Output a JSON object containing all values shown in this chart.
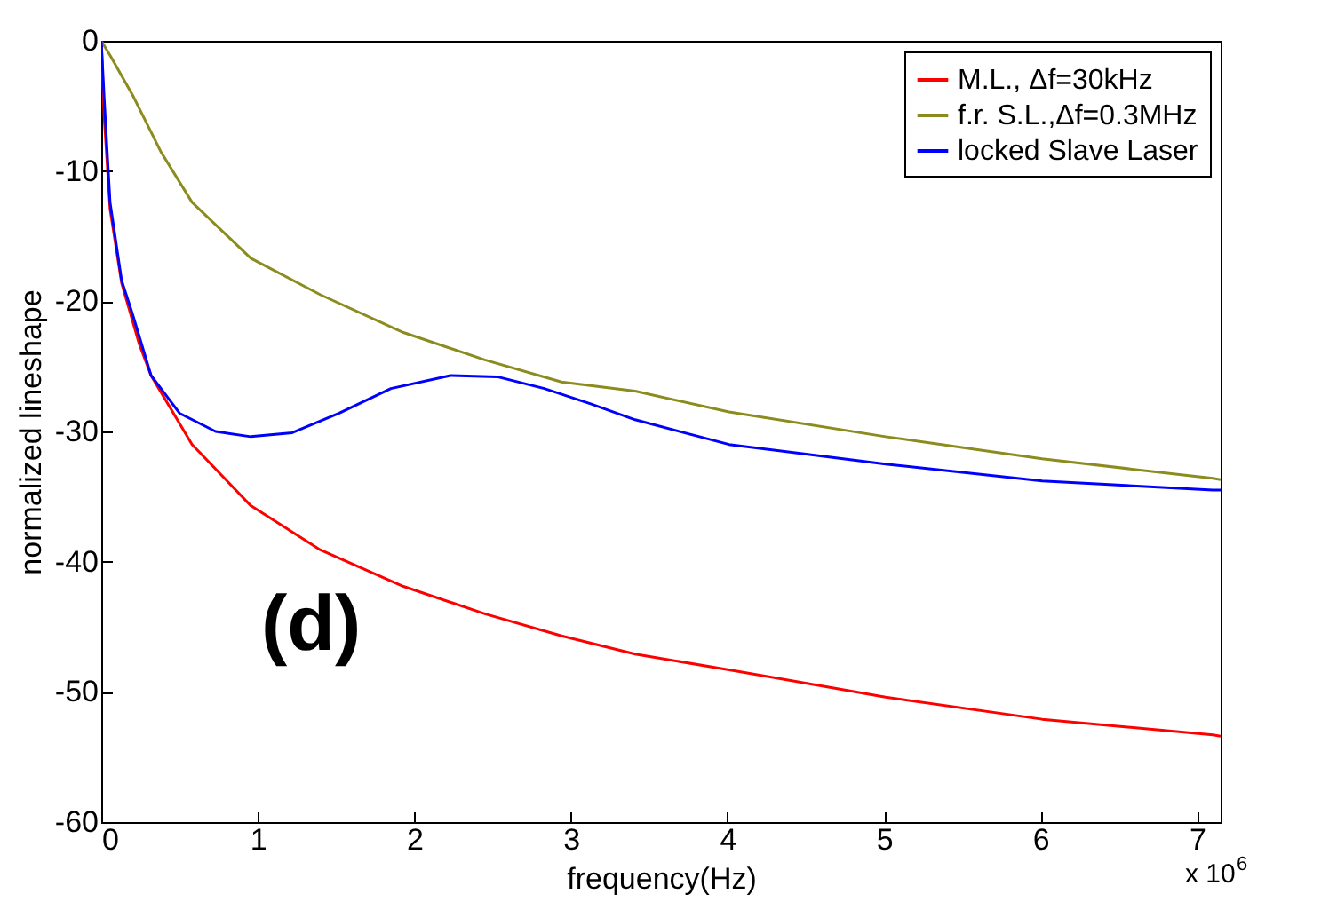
{
  "chart_data": {
    "type": "line",
    "xlabel": "frequency(Hz)",
    "ylabel": "normalized lineshape",
    "annotations": [
      "(d)",
      "x 10$^{6}$"
    ],
    "xlim": [
      0,
      7.15
    ],
    "xticks": [
      0,
      1,
      2,
      3,
      4,
      5,
      6,
      7
    ],
    "ylim": [
      -60,
      0
    ],
    "yticks": [
      -60,
      -50,
      -40,
      -30,
      -20,
      -10,
      0
    ],
    "legend": "top right",
    "grid": false,
    "line_style": "solid",
    "marker": "none",
    "series": [
      {
        "name": "M.L., Δf=30kHz",
        "color": "#ff0000",
        "x": [
          0,
          0.018,
          0.056,
          0.13,
          0.243,
          0.318,
          0.58,
          0.955,
          1.4,
          1.93,
          2.45,
          2.94,
          3.41,
          4.01,
          5.01,
          6.01,
          7.1,
          7.15
        ],
        "values": [
          0,
          -5.7,
          -12.9,
          -18.6,
          -23.3,
          -25.7,
          -31,
          -35.7,
          -39.1,
          -41.9,
          -44,
          -45.7,
          -47.1,
          -48.3,
          -50.4,
          -52.1,
          -53.3,
          -53.4
        ]
      },
      {
        "name": "f.r. S.L.,Δf=0.3MHz",
        "color": "#8c8c1e",
        "x": [
          0,
          0.06,
          0.206,
          0.38,
          0.58,
          0.955,
          1.4,
          1.93,
          2.45,
          2.94,
          3.41,
          4.01,
          5.01,
          6.01,
          7.1,
          7.15
        ],
        "values": [
          0,
          -1.2,
          -4.3,
          -8.5,
          -12.4,
          -16.7,
          -19.5,
          -22.4,
          -24.5,
          -26.2,
          -26.9,
          -28.5,
          -30.4,
          -32.1,
          -33.6,
          -33.7
        ]
      },
      {
        "name": "locked Slave Laser",
        "color": "#0000ff",
        "x": [
          0,
          0.018,
          0.056,
          0.13,
          0.2,
          0.318,
          0.5,
          0.73,
          0.955,
          1.22,
          1.52,
          1.85,
          2.23,
          2.53,
          2.83,
          3.13,
          3.41,
          4.01,
          5.01,
          6.01,
          7.1,
          7.15
        ],
        "values": [
          0,
          -4.3,
          -12.4,
          -18.4,
          -21,
          -25.7,
          -28.6,
          -30,
          -30.4,
          -30.1,
          -28.6,
          -26.7,
          -25.7,
          -25.8,
          -26.7,
          -27.9,
          -29.1,
          -31,
          -32.5,
          -33.8,
          -34.5,
          -34.5
        ]
      }
    ]
  }
}
